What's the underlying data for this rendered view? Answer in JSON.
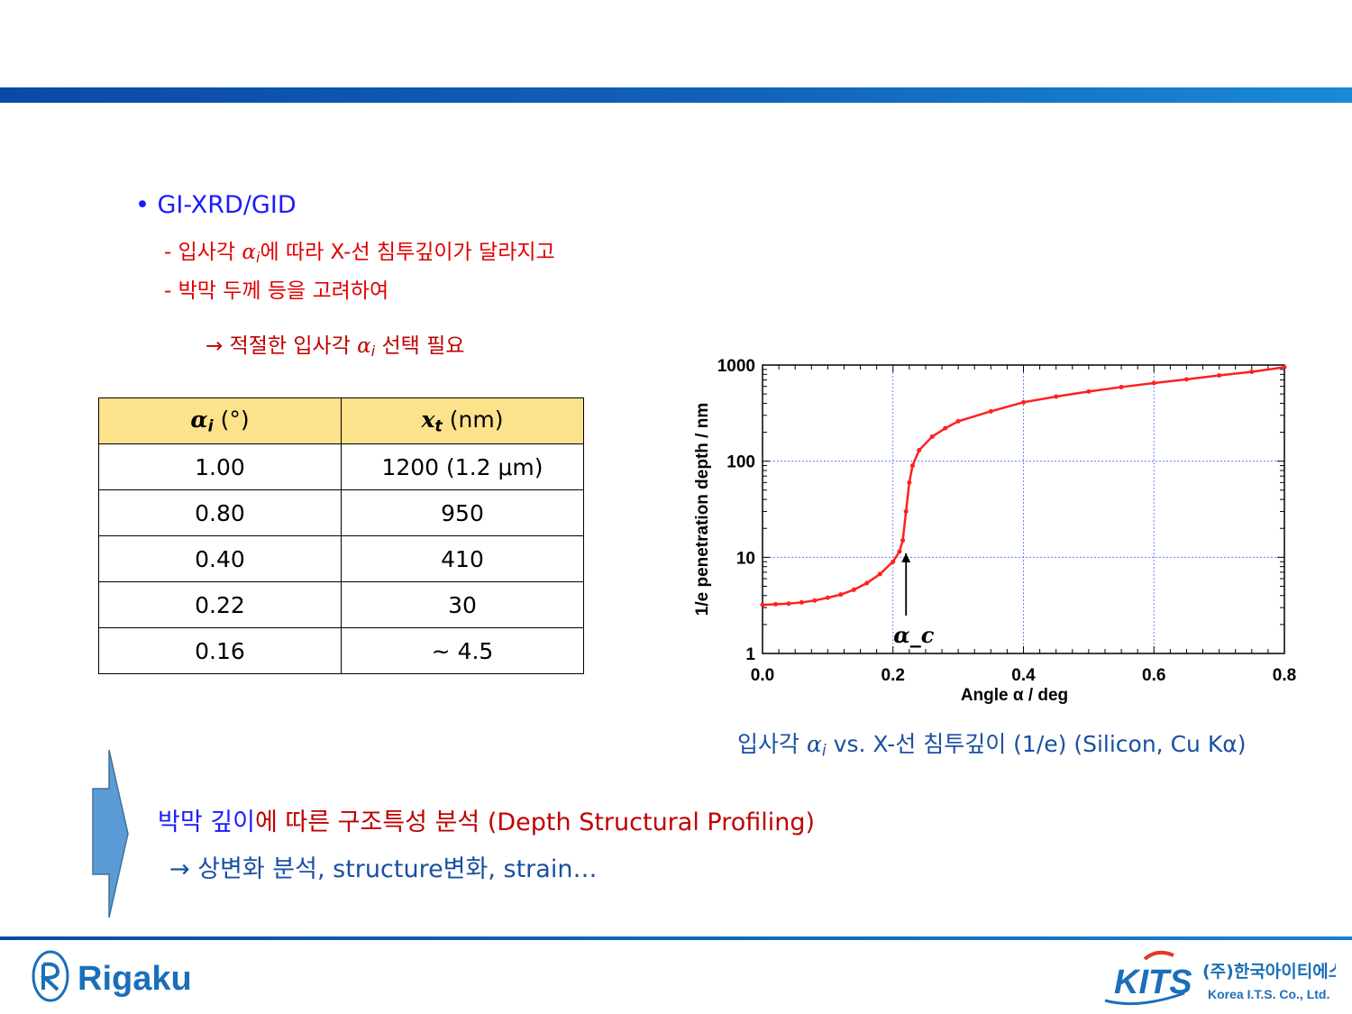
{
  "header": {
    "accent": "#0b4aa3"
  },
  "bullets": {
    "title": "• GI-XRD/GID",
    "line1_prefix": "- 입사각 ",
    "line1_suffix": "에 따라 X-선 침투깊이가 달라지고",
    "line2": "- 박막 두께 등을 고려하여",
    "conclusion_prefix": "→ 적절한 입사각 ",
    "conclusion_suffix": " 선택 필요",
    "alpha_symbol": "α",
    "alpha_sub": "i"
  },
  "table": {
    "header_col1_unit": "(°)",
    "header_col2_unit": "(nm)",
    "header_col1_symbol": "α",
    "header_col1_sub": "i",
    "header_col2_symbol": "x",
    "header_col2_sub": "t",
    "header_bg": "#fde28c",
    "rows": [
      [
        "1.00",
        "1200  (1.2 μm)"
      ],
      [
        "0.80",
        "950"
      ],
      [
        "0.40",
        "410"
      ],
      [
        "0.22",
        "30"
      ],
      [
        "0.16",
        "~ 4.5"
      ]
    ]
  },
  "chart_data": {
    "type": "line",
    "title": "",
    "xlabel": "Angle α / deg",
    "ylabel": "1/e penetration depth  / nm",
    "x_scale": "linear",
    "y_scale": "log",
    "xlim": [
      0.0,
      0.8
    ],
    "ylim": [
      1,
      1000
    ],
    "x_ticks": [
      "0.0",
      "0.2",
      "0.4",
      "0.6",
      "0.8"
    ],
    "y_ticks": [
      "1",
      "10",
      "100",
      "1000"
    ],
    "grid": true,
    "annotation": "α_c",
    "annotation_x": 0.22,
    "series": [
      {
        "color": "#ff2020",
        "x": [
          0.0,
          0.02,
          0.04,
          0.06,
          0.08,
          0.1,
          0.12,
          0.14,
          0.16,
          0.18,
          0.2,
          0.21,
          0.215,
          0.22,
          0.225,
          0.23,
          0.24,
          0.26,
          0.28,
          0.3,
          0.35,
          0.4,
          0.45,
          0.5,
          0.55,
          0.6,
          0.65,
          0.7,
          0.75,
          0.8
        ],
        "y": [
          3.2,
          3.25,
          3.3,
          3.4,
          3.55,
          3.8,
          4.1,
          4.6,
          5.4,
          6.7,
          9.0,
          11.5,
          15,
          30,
          60,
          90,
          130,
          180,
          220,
          260,
          330,
          410,
          470,
          530,
          590,
          650,
          710,
          780,
          850,
          950
        ]
      }
    ]
  },
  "caption": {
    "prefix": "입사각 ",
    "suffix": " vs. X-선 침투깊이 (1/e) (Silicon, Cu Kα)"
  },
  "summary": {
    "part_blue": "박막 깊이",
    "part_red": "에 따른 구조특성 분석 (Depth Structural Profiling)",
    "line2": "→ 상변화 분석, structure변화, strain…"
  },
  "footer": {
    "left_logo": "Rigaku",
    "right_logo_main": "KITS",
    "right_logo_kr": "(주)한국아이티에스",
    "right_logo_en": "Korea I.T.S. Co., Ltd.",
    "brand_blue": "#1b6fb8"
  }
}
